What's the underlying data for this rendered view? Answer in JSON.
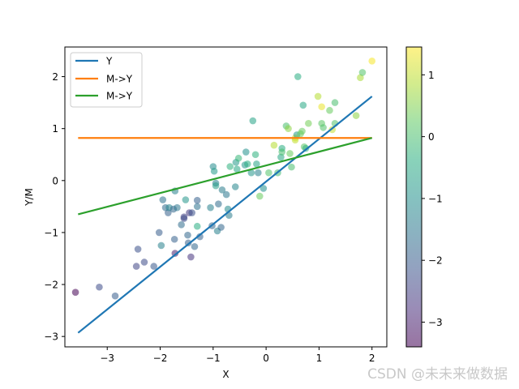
{
  "chart_data": {
    "type": "scatter",
    "title": "",
    "xlabel": "X",
    "ylabel": "Y/M",
    "xlim": [
      -3.8,
      2.28
    ],
    "ylim": [
      -3.2,
      2.57
    ],
    "xticks": [
      -3,
      -2,
      -1,
      0,
      1,
      2
    ],
    "yticks": [
      -3,
      -2,
      -1,
      0,
      1,
      2
    ],
    "grid": false,
    "legend_position": "top-left",
    "colorbar": {
      "colormap": "viridis",
      "range": [
        -3.4,
        1.45
      ],
      "ticks": [
        -3,
        -2,
        -1,
        0,
        1
      ]
    },
    "scatter_points": [
      {
        "x": -3.6,
        "y": -2.15,
        "c": -3.4
      },
      {
        "x": -3.15,
        "y": -2.05,
        "c": -2.3
      },
      {
        "x": -2.85,
        "y": -2.22,
        "c": -2.0
      },
      {
        "x": -2.45,
        "y": -1.65,
        "c": -2.4
      },
      {
        "x": -2.42,
        "y": -1.32,
        "c": -2.2
      },
      {
        "x": -2.3,
        "y": -1.57,
        "c": -2.3
      },
      {
        "x": -2.12,
        "y": -1.65,
        "c": -2.1
      },
      {
        "x": -2.02,
        "y": -1.0,
        "c": -2.0
      },
      {
        "x": -1.98,
        "y": -1.25,
        "c": -1.3
      },
      {
        "x": -1.95,
        "y": -0.37,
        "c": -1.6
      },
      {
        "x": -1.9,
        "y": -0.52,
        "c": -1.7
      },
      {
        "x": -1.85,
        "y": -0.62,
        "c": -1.9
      },
      {
        "x": -1.83,
        "y": -0.52,
        "c": -1.2
      },
      {
        "x": -1.75,
        "y": -0.55,
        "c": -1.8
      },
      {
        "x": -1.73,
        "y": -1.13,
        "c": -1.9
      },
      {
        "x": -1.72,
        "y": -0.2,
        "c": -1.3
      },
      {
        "x": -1.68,
        "y": -0.52,
        "c": -1.5
      },
      {
        "x": -1.72,
        "y": -1.4,
        "c": -3.0
      },
      {
        "x": -1.6,
        "y": -0.85,
        "c": -1.7
      },
      {
        "x": -1.55,
        "y": -0.7,
        "c": -2.5
      },
      {
        "x": -1.55,
        "y": -0.73,
        "c": -2.3
      },
      {
        "x": -1.52,
        "y": -0.37,
        "c": -0.9
      },
      {
        "x": -1.48,
        "y": -1.05,
        "c": -1.8
      },
      {
        "x": -1.47,
        "y": -1.2,
        "c": -1.9
      },
      {
        "x": -1.45,
        "y": -0.62,
        "c": -2.6
      },
      {
        "x": -1.42,
        "y": -1.47,
        "c": -2.7
      },
      {
        "x": -1.4,
        "y": -0.62,
        "c": -2.2
      },
      {
        "x": -1.35,
        "y": -1.27,
        "c": -1.8
      },
      {
        "x": -1.3,
        "y": -0.5,
        "c": -1.6
      },
      {
        "x": -1.3,
        "y": -0.88,
        "c": -0.4
      },
      {
        "x": -1.3,
        "y": -0.38,
        "c": -1.9
      },
      {
        "x": -1.25,
        "y": -1.08,
        "c": -1.9
      },
      {
        "x": -1.05,
        "y": -0.52,
        "c": -1.3
      },
      {
        "x": -1.02,
        "y": -0.87,
        "c": -1.8
      },
      {
        "x": -1.0,
        "y": 0.27,
        "c": -1.1
      },
      {
        "x": -0.98,
        "y": 0.18,
        "c": -0.8
      },
      {
        "x": -0.95,
        "y": -0.05,
        "c": -1.3
      },
      {
        "x": -0.95,
        "y": -0.1,
        "c": -0.7
      },
      {
        "x": -0.92,
        "y": -0.97,
        "c": -1.3
      },
      {
        "x": -0.9,
        "y": -0.45,
        "c": -1.7
      },
      {
        "x": -0.85,
        "y": -0.9,
        "c": -1.8
      },
      {
        "x": -0.83,
        "y": -0.18,
        "c": -1.4
      },
      {
        "x": -0.75,
        "y": -0.27,
        "c": -1.5
      },
      {
        "x": -0.72,
        "y": -0.55,
        "c": -1.1
      },
      {
        "x": -0.7,
        "y": -0.67,
        "c": -1.4
      },
      {
        "x": -0.68,
        "y": 0.27,
        "c": -0.3
      },
      {
        "x": -0.58,
        "y": -0.12,
        "c": -1.2
      },
      {
        "x": -0.57,
        "y": 0.35,
        "c": -0.8
      },
      {
        "x": -0.52,
        "y": 0.43,
        "c": -0.2
      },
      {
        "x": -0.55,
        "y": 0.22,
        "c": -0.5
      },
      {
        "x": -0.4,
        "y": 0.3,
        "c": -0.9
      },
      {
        "x": -0.38,
        "y": 0.55,
        "c": -1.0
      },
      {
        "x": -0.35,
        "y": 0.32,
        "c": -0.4
      },
      {
        "x": -0.28,
        "y": 0.15,
        "c": -0.9
      },
      {
        "x": -0.25,
        "y": 1.15,
        "c": -0.6
      },
      {
        "x": -0.2,
        "y": 0.5,
        "c": -0.3
      },
      {
        "x": -0.18,
        "y": 0.32,
        "c": -0.6
      },
      {
        "x": -0.15,
        "y": 0.15,
        "c": -1.3
      },
      {
        "x": -0.12,
        "y": -0.3,
        "c": 0.3
      },
      {
        "x": -0.05,
        "y": -0.15,
        "c": -1.0
      },
      {
        "x": 0.05,
        "y": 0.15,
        "c": 0.1
      },
      {
        "x": 0.15,
        "y": 0.68,
        "c": 0.9
      },
      {
        "x": 0.22,
        "y": 0.15,
        "c": -0.1
      },
      {
        "x": 0.28,
        "y": 0.45,
        "c": -0.5
      },
      {
        "x": 0.3,
        "y": 0.62,
        "c": -0.4
      },
      {
        "x": 0.3,
        "y": 0.55,
        "c": 0.0
      },
      {
        "x": 0.38,
        "y": 1.05,
        "c": 0.0
      },
      {
        "x": 0.42,
        "y": 1.0,
        "c": 0.6
      },
      {
        "x": 0.45,
        "y": 0.52,
        "c": 0.3
      },
      {
        "x": 0.48,
        "y": 0.26,
        "c": 0.0
      },
      {
        "x": 0.55,
        "y": 0.82,
        "c": 1.2
      },
      {
        "x": 0.55,
        "y": 0.78,
        "c": 1.0
      },
      {
        "x": 0.58,
        "y": 0.88,
        "c": -0.8
      },
      {
        "x": 0.6,
        "y": 2.0,
        "c": -0.4
      },
      {
        "x": 0.65,
        "y": 0.9,
        "c": 0.3
      },
      {
        "x": 0.68,
        "y": 0.95,
        "c": 0.3
      },
      {
        "x": 0.7,
        "y": 1.45,
        "c": -0.5
      },
      {
        "x": 0.72,
        "y": 0.65,
        "c": 0.2
      },
      {
        "x": 0.75,
        "y": 0.62,
        "c": -0.3
      },
      {
        "x": 0.8,
        "y": 1.1,
        "c": 0.4
      },
      {
        "x": 0.98,
        "y": 1.62,
        "c": 0.9
      },
      {
        "x": 1.05,
        "y": 1.42,
        "c": 1.3
      },
      {
        "x": 1.05,
        "y": 1.1,
        "c": 0.2
      },
      {
        "x": 1.08,
        "y": 1.02,
        "c": 0.1
      },
      {
        "x": 1.2,
        "y": 1.35,
        "c": 0.3
      },
      {
        "x": 1.25,
        "y": 0.98,
        "c": 1.0
      },
      {
        "x": 1.3,
        "y": 1.5,
        "c": 0.0
      },
      {
        "x": 1.3,
        "y": 1.1,
        "c": 0.1
      },
      {
        "x": 1.7,
        "y": 1.25,
        "c": 0.6
      },
      {
        "x": 1.78,
        "y": 1.98,
        "c": 0.8
      },
      {
        "x": 1.82,
        "y": 2.08,
        "c": 0.1
      },
      {
        "x": 2.0,
        "y": 2.3,
        "c": 1.4
      }
    ],
    "series": [
      {
        "name": "Y",
        "type": "line",
        "color": "#1f77b4",
        "x": [
          -3.55,
          2.0
        ],
        "y": [
          -2.93,
          1.62
        ]
      },
      {
        "name": "M->Y",
        "type": "line",
        "color": "#ff7f0e",
        "x": [
          -3.55,
          2.0
        ],
        "y": [
          0.82,
          0.82
        ]
      },
      {
        "name": "M->Y",
        "type": "line",
        "color": "#2ca02c",
        "x": [
          -3.55,
          2.0
        ],
        "y": [
          -0.65,
          0.82
        ]
      }
    ]
  },
  "watermark": "CSDN @未未来做数据"
}
